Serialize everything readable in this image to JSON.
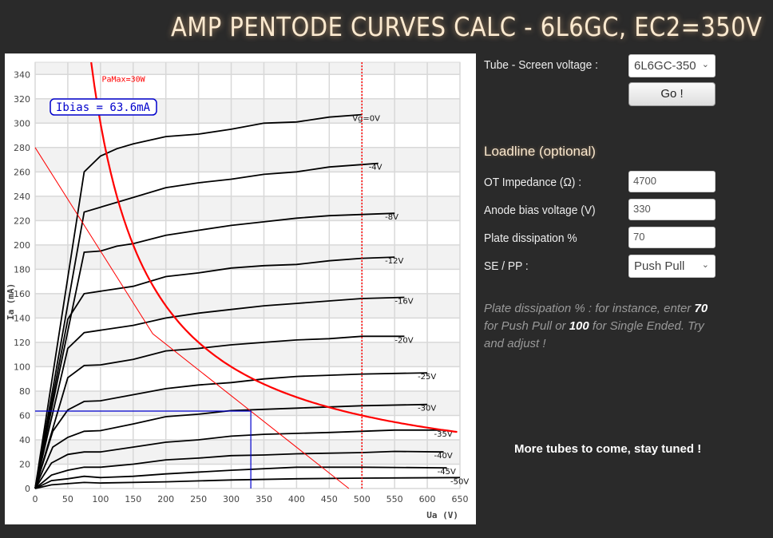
{
  "header": {
    "title": "AMP PENTODE CURVES CALC - 6L6GC, EC2=350V"
  },
  "form": {
    "tube_label": "Tube - Screen voltage :",
    "tube_value": "6L6GC-350",
    "go_label": "Go !",
    "loadline_heading": "Loadline (optional)",
    "impedance_label": "OT Impedance (Ω) :",
    "impedance_value": "4700",
    "bias_label": "Anode bias voltage (V)",
    "bias_value": "330",
    "dissipation_label": "Plate dissipation %",
    "dissipation_value": "70",
    "sepp_label": "SE / PP :",
    "sepp_value": "Push Pull",
    "hint_a": "Plate dissipation % : for instance, enter ",
    "hint_b": "70",
    "hint_c": " for Push Pull or ",
    "hint_d": "100",
    "hint_e": " for Single Ended. Try and adjust !"
  },
  "footer": {
    "more": "More tubes to come, stay tuned !"
  },
  "chart_data": {
    "type": "line",
    "xlabel": "Ua (V)",
    "ylabel": "Ia (mA)",
    "xlim": [
      0,
      650
    ],
    "ylim": [
      0,
      350
    ],
    "xticks": [
      0,
      50,
      100,
      150,
      200,
      250,
      300,
      350,
      400,
      450,
      500,
      550,
      600,
      650
    ],
    "yticks": [
      0,
      20,
      40,
      60,
      80,
      100,
      120,
      140,
      160,
      180,
      200,
      220,
      240,
      260,
      280,
      300,
      320,
      340
    ],
    "series": [
      {
        "name": "Vg=0V",
        "points": [
          [
            0,
            0
          ],
          [
            75,
            260
          ],
          [
            100,
            273
          ],
          [
            125,
            279
          ],
          [
            150,
            283
          ],
          [
            200,
            289
          ],
          [
            250,
            291
          ],
          [
            300,
            295
          ],
          [
            350,
            300
          ],
          [
            400,
            301
          ],
          [
            450,
            305
          ],
          [
            500,
            307
          ]
        ]
      },
      {
        "name": "-4V",
        "points": [
          [
            0,
            0
          ],
          [
            75,
            227
          ],
          [
            100,
            231
          ],
          [
            150,
            239
          ],
          [
            200,
            247
          ],
          [
            250,
            251
          ],
          [
            300,
            254
          ],
          [
            350,
            258
          ],
          [
            400,
            260
          ],
          [
            450,
            264
          ],
          [
            500,
            266
          ],
          [
            525,
            267
          ]
        ]
      },
      {
        "name": "-8V",
        "points": [
          [
            0,
            0
          ],
          [
            75,
            194
          ],
          [
            100,
            195
          ],
          [
            125,
            199
          ],
          [
            150,
            201
          ],
          [
            200,
            208
          ],
          [
            250,
            212
          ],
          [
            300,
            216
          ],
          [
            350,
            219
          ],
          [
            400,
            222
          ],
          [
            450,
            224
          ],
          [
            500,
            225
          ],
          [
            550,
            226
          ]
        ]
      },
      {
        "name": "-12V",
        "points": [
          [
            0,
            0
          ],
          [
            50,
            139
          ],
          [
            75,
            160
          ],
          [
            100,
            162
          ],
          [
            150,
            166
          ],
          [
            200,
            174
          ],
          [
            250,
            177
          ],
          [
            300,
            181
          ],
          [
            350,
            183
          ],
          [
            400,
            184
          ],
          [
            450,
            187
          ],
          [
            500,
            189
          ],
          [
            550,
            190
          ]
        ]
      },
      {
        "name": "-16V",
        "points": [
          [
            0,
            0
          ],
          [
            50,
            115
          ],
          [
            75,
            128
          ],
          [
            100,
            130
          ],
          [
            150,
            134
          ],
          [
            200,
            140
          ],
          [
            250,
            144
          ],
          [
            300,
            147
          ],
          [
            350,
            150
          ],
          [
            400,
            152
          ],
          [
            450,
            154
          ],
          [
            500,
            156
          ],
          [
            565,
            157
          ]
        ]
      },
      {
        "name": "-20V",
        "points": [
          [
            0,
            0
          ],
          [
            50,
            91
          ],
          [
            75,
            101
          ],
          [
            100,
            101.5
          ],
          [
            150,
            106
          ],
          [
            200,
            113
          ],
          [
            250,
            115
          ],
          [
            300,
            118
          ],
          [
            350,
            120
          ],
          [
            400,
            122
          ],
          [
            450,
            123
          ],
          [
            500,
            125
          ],
          [
            565,
            125
          ]
        ]
      },
      {
        "name": "-25V",
        "points": [
          [
            0,
            0
          ],
          [
            27,
            47
          ],
          [
            50,
            64.5
          ],
          [
            75,
            71.5
          ],
          [
            100,
            72
          ],
          [
            150,
            77
          ],
          [
            200,
            82
          ],
          [
            250,
            85
          ],
          [
            300,
            87
          ],
          [
            350,
            90
          ],
          [
            400,
            92
          ],
          [
            450,
            93
          ],
          [
            500,
            94
          ],
          [
            600,
            95
          ]
        ]
      },
      {
        "name": "-30V",
        "points": [
          [
            0,
            0
          ],
          [
            27,
            34
          ],
          [
            50,
            42
          ],
          [
            75,
            47
          ],
          [
            100,
            47.5
          ],
          [
            150,
            53
          ],
          [
            200,
            59
          ],
          [
            250,
            61
          ],
          [
            300,
            64
          ],
          [
            350,
            65
          ],
          [
            400,
            66
          ],
          [
            450,
            67
          ],
          [
            500,
            68
          ],
          [
            600,
            69
          ]
        ]
      },
      {
        "name": "-35V",
        "points": [
          [
            0,
            0
          ],
          [
            25,
            21
          ],
          [
            50,
            28
          ],
          [
            75,
            30
          ],
          [
            100,
            30
          ],
          [
            150,
            34
          ],
          [
            200,
            38
          ],
          [
            250,
            40
          ],
          [
            300,
            43
          ],
          [
            350,
            44.5
          ],
          [
            450,
            46
          ],
          [
            550,
            48
          ],
          [
            625,
            48
          ]
        ]
      },
      {
        "name": "-40V",
        "points": [
          [
            0,
            0
          ],
          [
            25,
            11
          ],
          [
            50,
            15
          ],
          [
            75,
            17.5
          ],
          [
            100,
            17.5
          ],
          [
            150,
            20
          ],
          [
            200,
            23.5
          ],
          [
            250,
            25
          ],
          [
            300,
            27
          ],
          [
            350,
            27.5
          ],
          [
            400,
            28.5
          ],
          [
            500,
            29.5
          ],
          [
            550,
            30.5
          ],
          [
            625,
            30
          ]
        ]
      },
      {
        "name": "-45V",
        "points": [
          [
            0,
            0
          ],
          [
            25,
            6.5
          ],
          [
            50,
            8
          ],
          [
            75,
            10
          ],
          [
            100,
            9
          ],
          [
            150,
            10
          ],
          [
            200,
            12
          ],
          [
            300,
            15
          ],
          [
            400,
            17.5
          ],
          [
            500,
            17.5
          ],
          [
            630,
            17
          ]
        ]
      },
      {
        "name": "-50V",
        "points": [
          [
            0,
            0
          ],
          [
            25,
            3
          ],
          [
            75,
            5
          ],
          [
            100,
            4.5
          ],
          [
            200,
            5.5
          ],
          [
            300,
            7
          ],
          [
            400,
            8
          ],
          [
            500,
            8.5
          ],
          [
            650,
            9
          ]
        ]
      }
    ],
    "pamax": {
      "label": "PaMax=30W",
      "watts": 30
    },
    "screen_limit_ua": 500,
    "loadline": [
      [
        0,
        280
      ],
      [
        180,
        127
      ],
      [
        480,
        0
      ]
    ],
    "bias_point": {
      "ua": 330,
      "ia": 63.6,
      "label": "Ibias = 63.6mA"
    },
    "colors": {
      "curves": "#000000",
      "pamax": "#ff0000",
      "bias": "#0000cc",
      "grid": "#d8d8d8",
      "band": "#f2f2f2"
    }
  }
}
